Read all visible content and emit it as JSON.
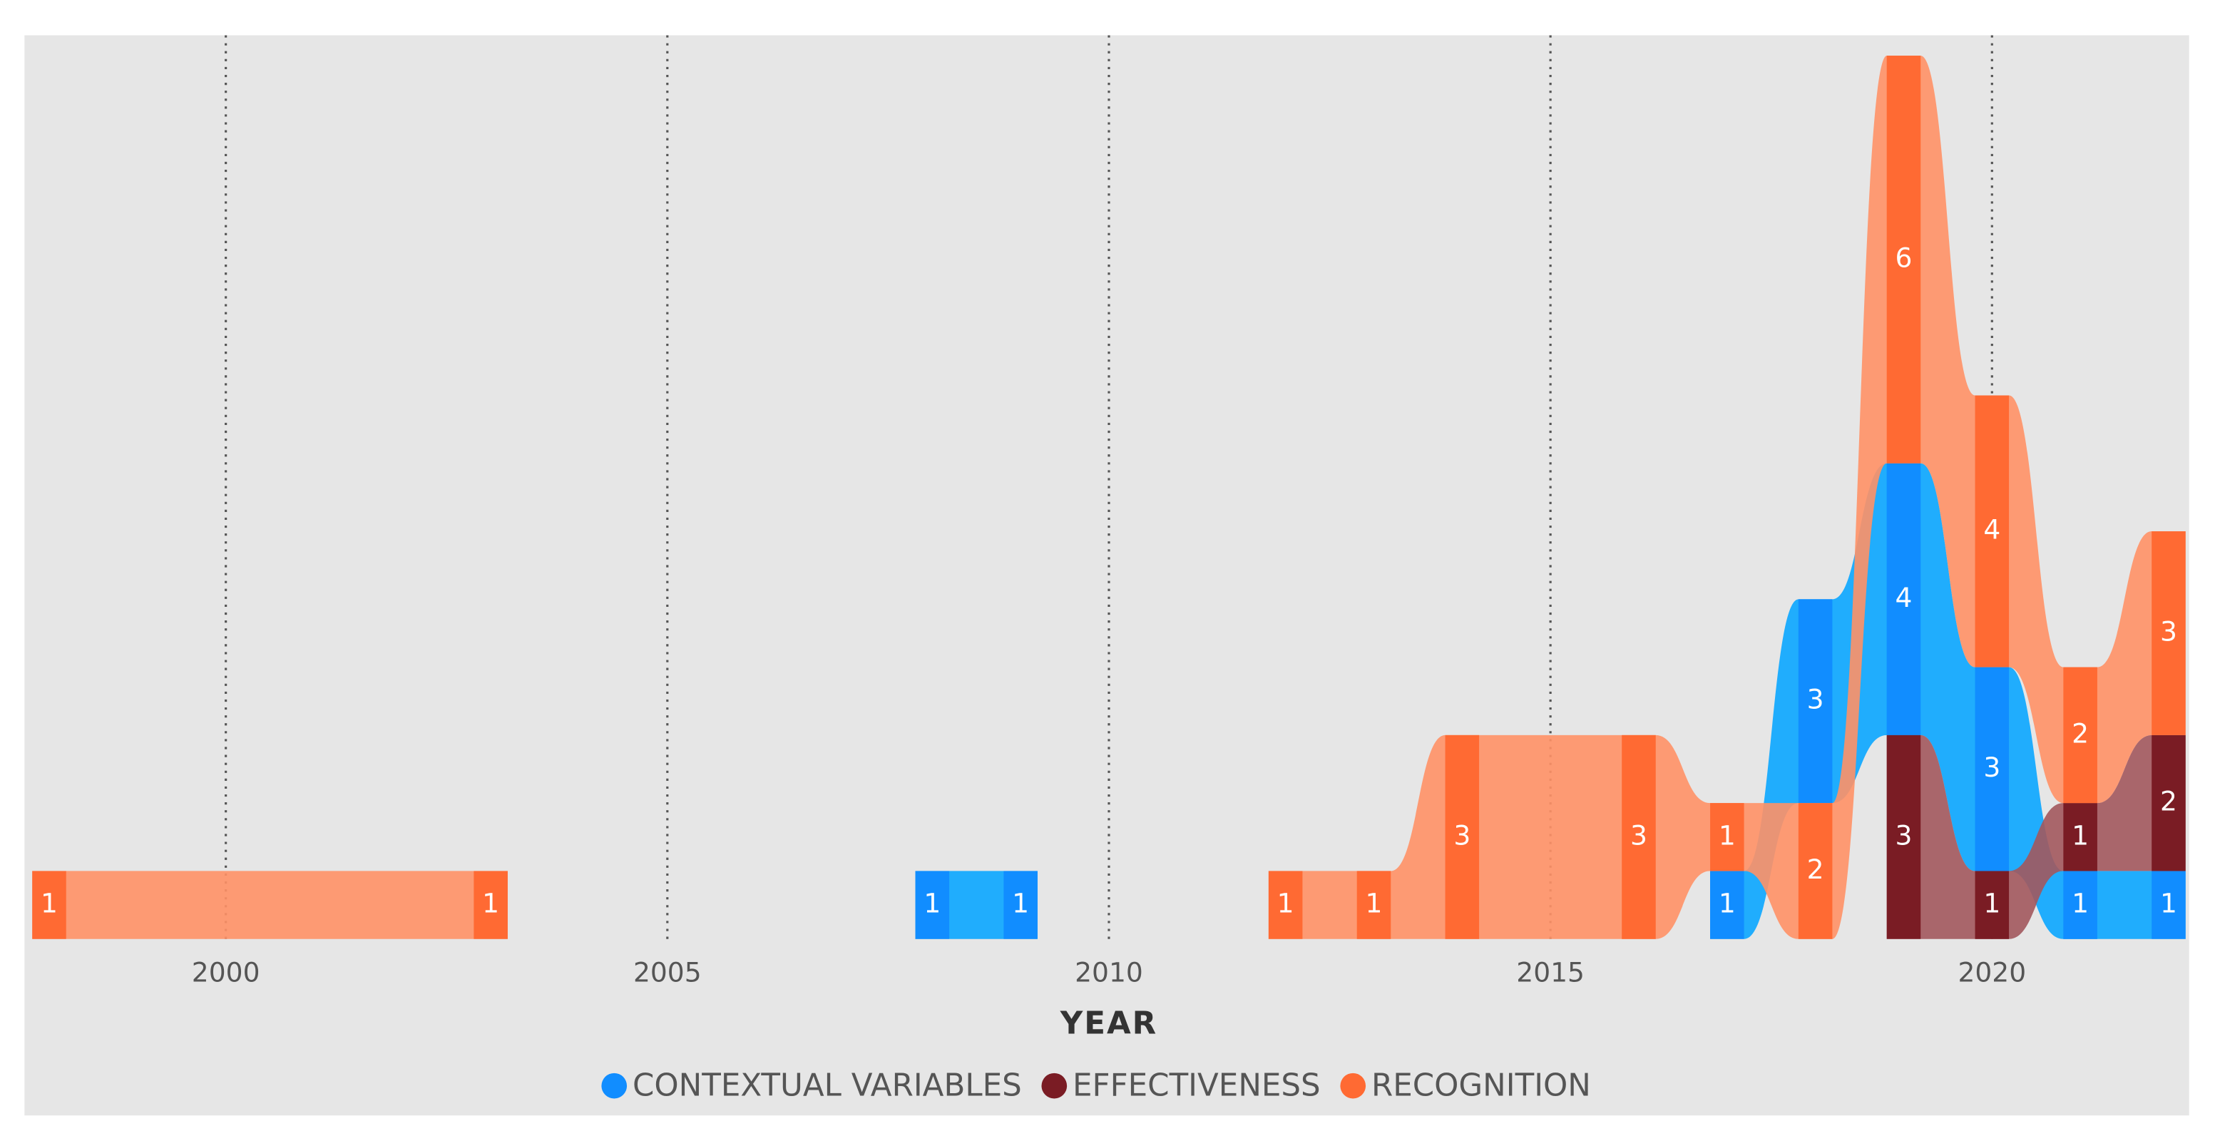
{
  "chart_data": {
    "type": "ribbon",
    "x_label": "YEAR",
    "x": [
      1998,
      2003,
      2008,
      2009,
      2012,
      2013,
      2014,
      2016,
      2017,
      2018,
      2019,
      2020,
      2021,
      2022
    ],
    "xlim": [
      1997.8,
      2022.2
    ],
    "xticks": [
      2000,
      2005,
      2010,
      2015,
      2020
    ],
    "ylim": [
      0,
      13.3
    ],
    "grid": true,
    "legend": "bottom",
    "series": [
      {
        "name": "CONTEXTUAL VARIABLES",
        "color": "#118dff",
        "ribbon_color": "#0aa6ff",
        "values": [
          null,
          null,
          1,
          1,
          null,
          null,
          null,
          null,
          1,
          3,
          4,
          3,
          1,
          1
        ]
      },
      {
        "name": "EFFECTIVENESS",
        "color": "#7a1c24",
        "ribbon_color": "#a2585d",
        "values": [
          null,
          null,
          null,
          null,
          null,
          null,
          null,
          null,
          null,
          null,
          3,
          1,
          1,
          2
        ]
      },
      {
        "name": "RECOGNITION",
        "color": "#ff6a33",
        "ribbon_color": "#ff9166",
        "values": [
          1,
          1,
          null,
          null,
          1,
          1,
          3,
          3,
          1,
          2,
          6,
          4,
          2,
          3
        ]
      }
    ]
  }
}
